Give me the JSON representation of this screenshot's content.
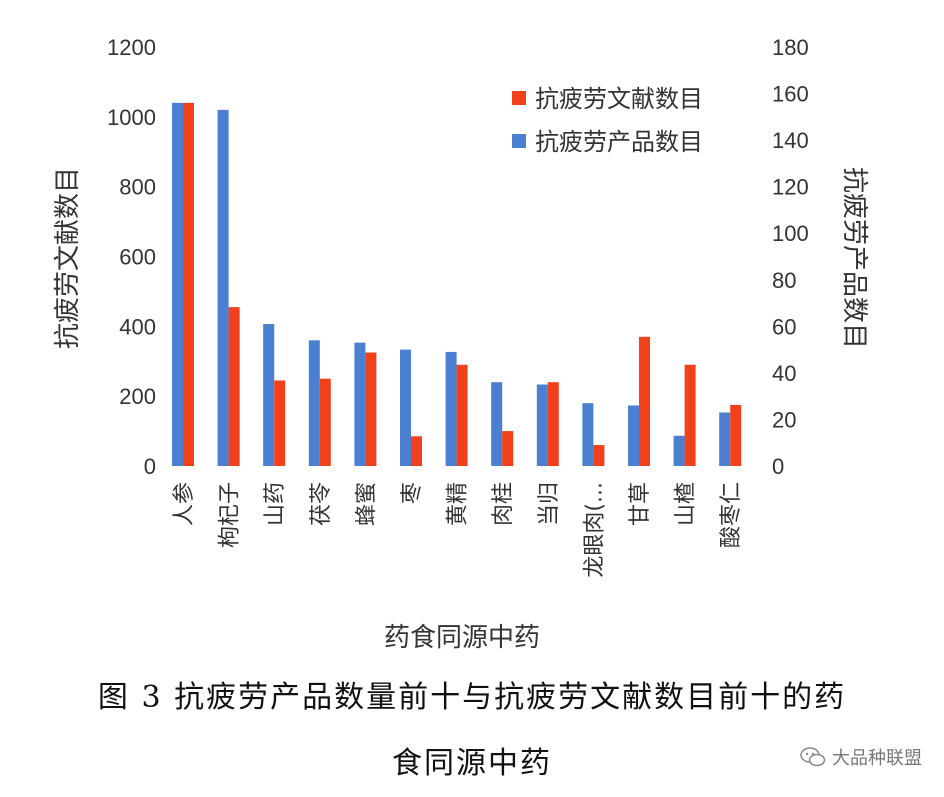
{
  "chart_data": {
    "type": "bar",
    "categories": [
      "人参",
      "枸杞子",
      "山药",
      "茯苓",
      "蜂蜜",
      "枣",
      "黄精",
      "肉桂",
      "当归",
      "龙眼肉(...",
      "甘草",
      "山楂",
      "酸枣仁"
    ],
    "series": [
      {
        "name": "抗疲劳产品数目",
        "axis": "right",
        "color": "#4a7fd1",
        "values": [
          156,
          153,
          61,
          54,
          53,
          50,
          49,
          36,
          35,
          27,
          26,
          13,
          23
        ]
      },
      {
        "name": "抗疲劳文献数目",
        "axis": "left",
        "color": "#f0401c",
        "values": [
          1040,
          455,
          245,
          250,
          325,
          85,
          290,
          100,
          240,
          60,
          370,
          290,
          175
        ]
      }
    ],
    "xlabel": "药食同源中药",
    "ylabel_left": "抗疲劳文献数目",
    "ylabel_right": "抗疲劳产品数目",
    "ylim_left": [
      0,
      1200
    ],
    "ylim_right": [
      0,
      180
    ],
    "yticks_left": [
      0,
      200,
      400,
      600,
      800,
      1000,
      1200
    ],
    "yticks_right": [
      0,
      20,
      40,
      60,
      80,
      100,
      120,
      140,
      160,
      180
    ],
    "legend": [
      "抗疲劳文献数目",
      "抗疲劳产品数目"
    ],
    "legend_position": "top-right",
    "grid": false
  },
  "caption": {
    "line1": "图 3  抗疲劳产品数量前十与抗疲劳文献数目前十的药",
    "line2": "食同源中药"
  },
  "watermark": {
    "text": "大品种联盟",
    "icon": "wechat-icon"
  }
}
